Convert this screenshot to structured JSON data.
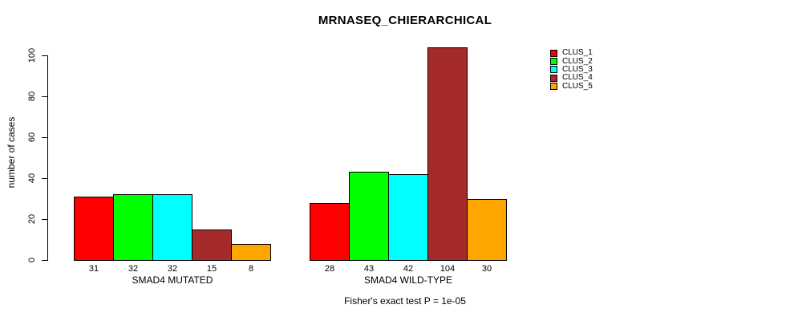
{
  "chart_data": {
    "type": "bar",
    "title": "MRNASEQ_CHIERARCHICAL",
    "ylabel": "number of cases",
    "xlabel": "",
    "ylim": [
      0,
      104
    ],
    "yticks": [
      0,
      20,
      40,
      60,
      80,
      100
    ],
    "grid": false,
    "legend_position": "right",
    "bar_value_labels": true,
    "categories": [
      "SMAD4 MUTATED",
      "SMAD4 WILD-TYPE"
    ],
    "series": [
      {
        "name": "CLUS_1",
        "color": "#ff0000",
        "values": [
          31,
          28
        ]
      },
      {
        "name": "CLUS_2",
        "color": "#00ff00",
        "values": [
          32,
          43
        ]
      },
      {
        "name": "CLUS_3",
        "color": "#00ffff",
        "values": [
          32,
          42
        ]
      },
      {
        "name": "CLUS_4",
        "color": "#a52a2a",
        "values": [
          15,
          104
        ]
      },
      {
        "name": "CLUS_5",
        "color": "#ffa500",
        "values": [
          8,
          30
        ]
      }
    ],
    "annotation": "Fisher's exact test P = 1e-05"
  }
}
